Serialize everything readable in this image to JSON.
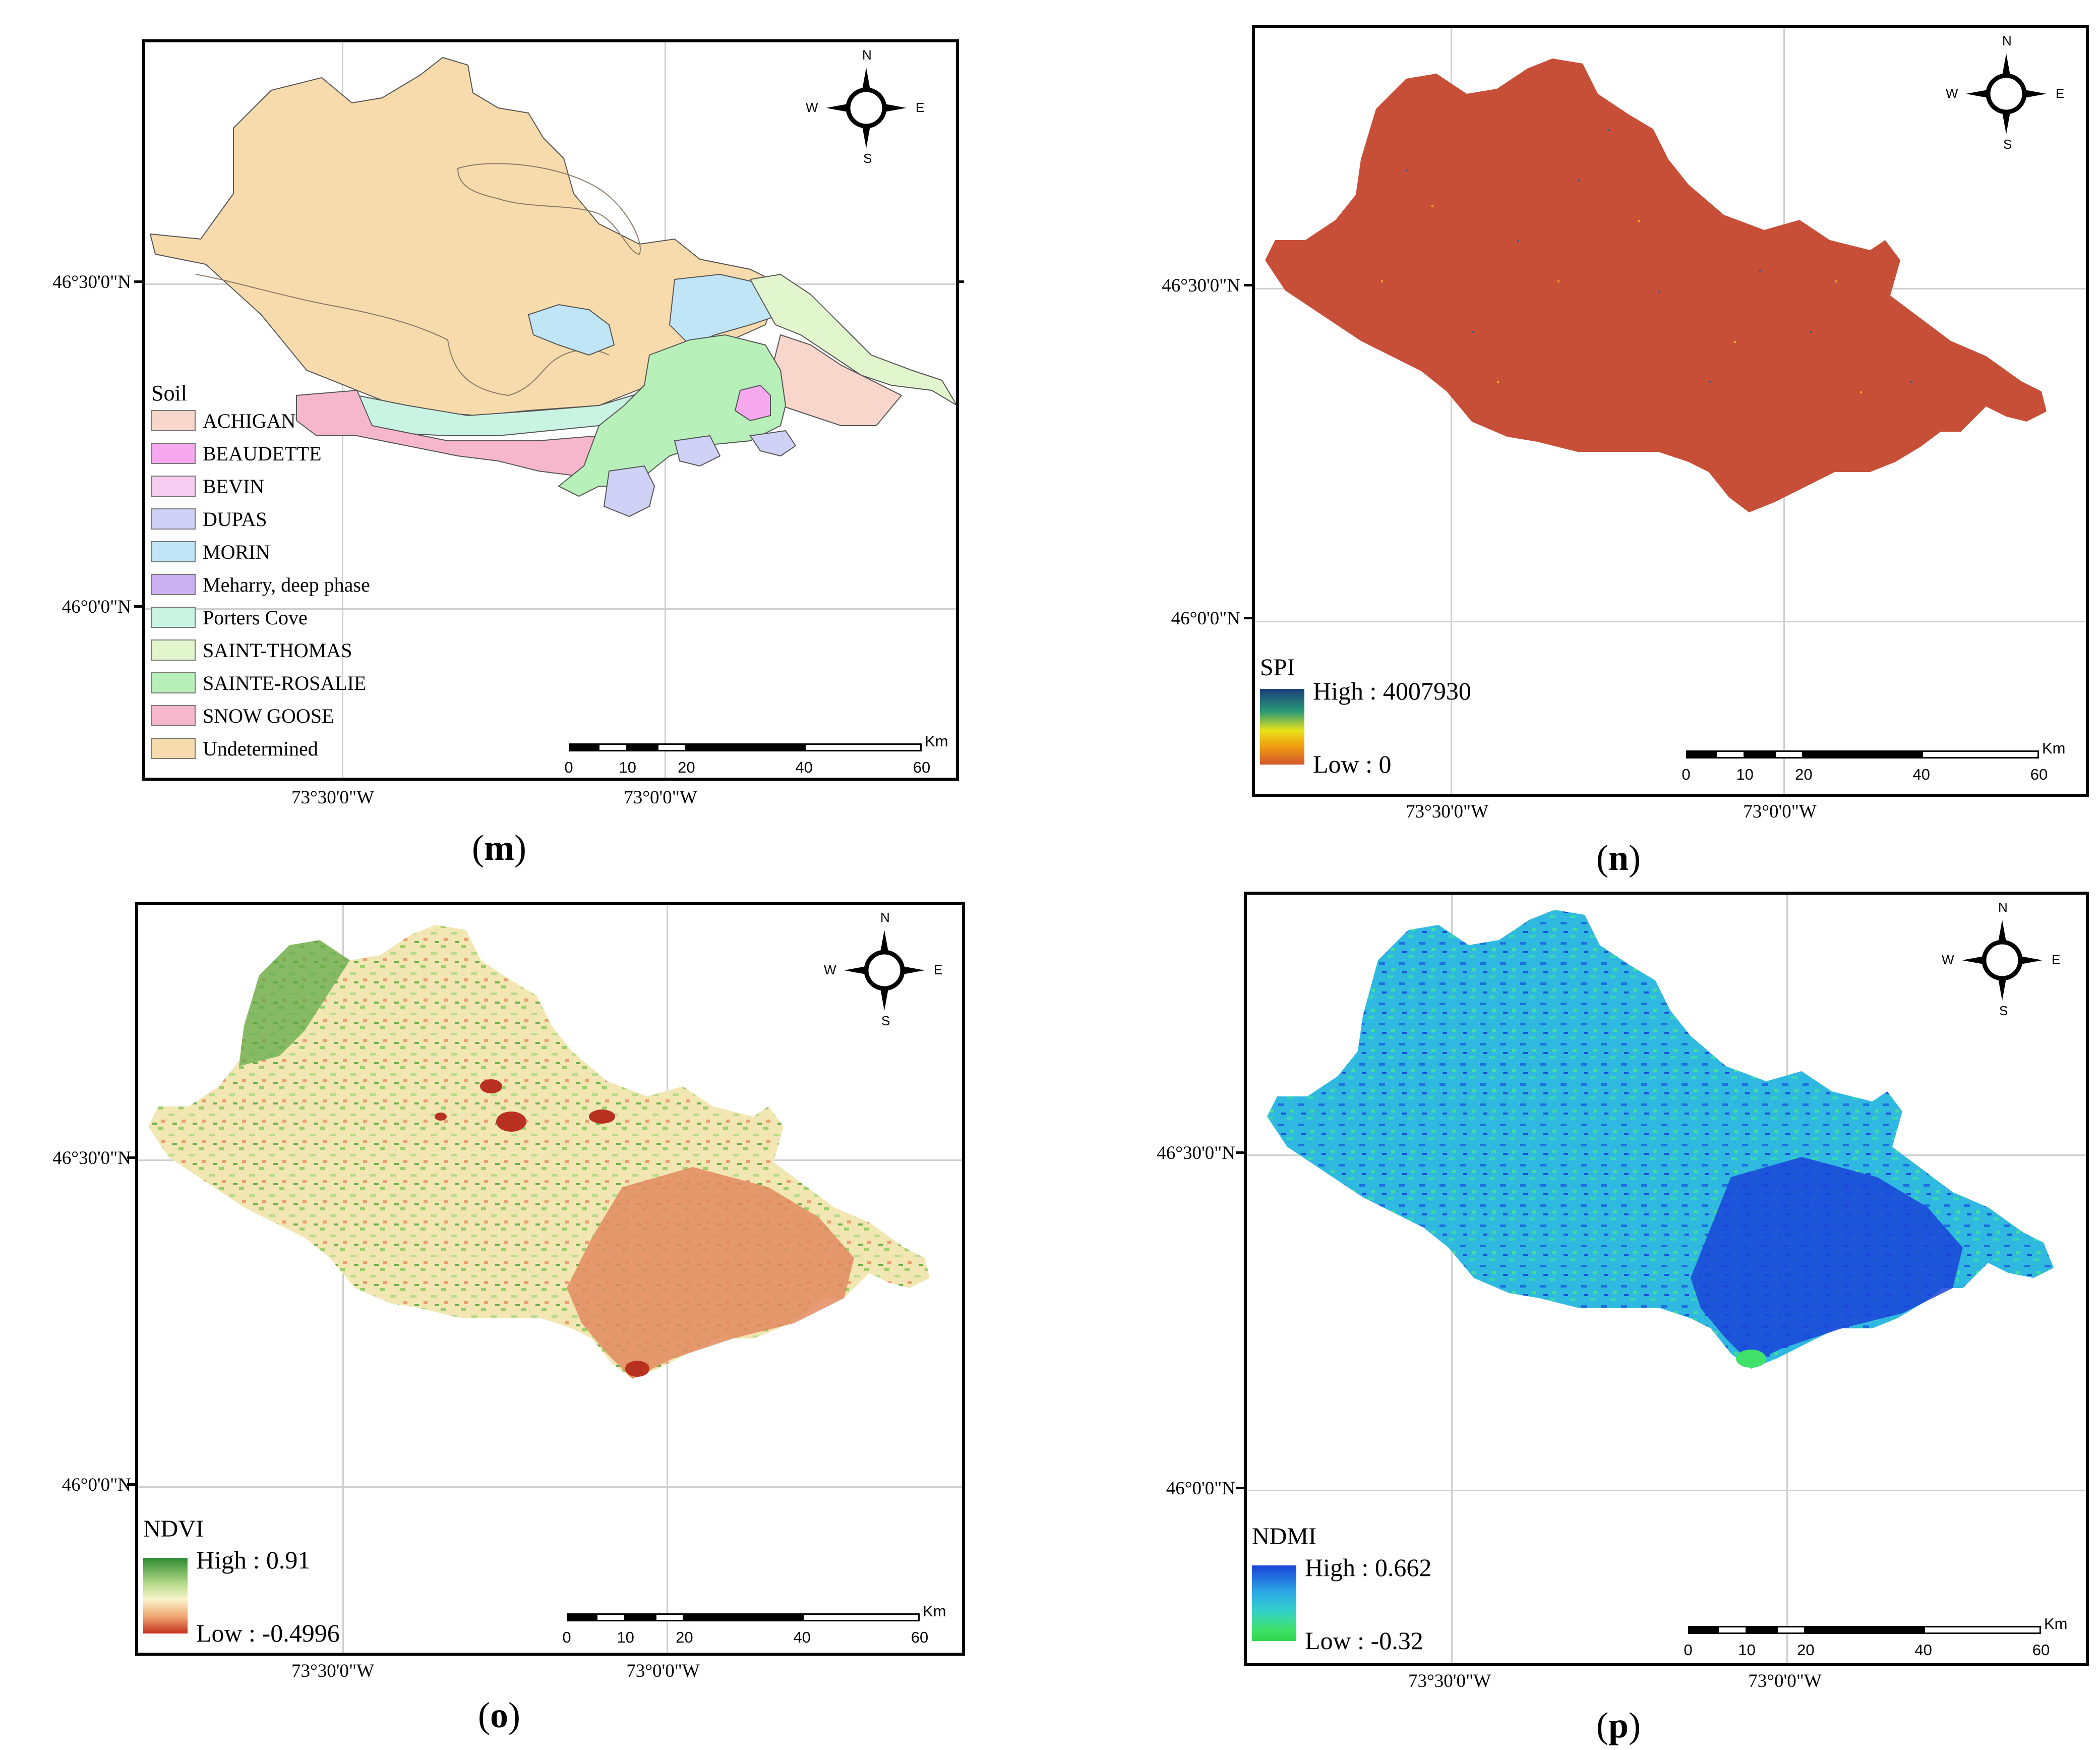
{
  "panels": {
    "m": {
      "caption_letter": "m",
      "lat_labels": [
        "46°30'0\"N",
        "46°0'0\"N"
      ],
      "lon_labels": [
        "73°30'0\"W",
        "73°0'0\"W"
      ],
      "legend_title": "Soil",
      "legend_items": [
        {
          "label": "ACHIGAN",
          "color": "#f8d6cc"
        },
        {
          "label": "BEAUDETTE",
          "color": "#f6a9ee"
        },
        {
          "label": "BEVIN",
          "color": "#f6cdf0"
        },
        {
          "label": "DUPAS",
          "color": "#cfd1f6"
        },
        {
          "label": "MORIN",
          "color": "#bfe5f7"
        },
        {
          "label": "Meharry, deep phase",
          "color": "#cbb1f2"
        },
        {
          "label": "Porters Cove",
          "color": "#c9f3e3"
        },
        {
          "label": "SAINT-THOMAS",
          "color": "#e2f6cd"
        },
        {
          "label": "SAINTE-ROSALIE",
          "color": "#b8f0b9"
        },
        {
          "label": "SNOW GOOSE",
          "color": "#f6b7cc"
        },
        {
          "label": "Undetermined",
          "color": "#f7dbac"
        }
      ]
    },
    "n": {
      "caption_letter": "n",
      "lat_labels": [
        "46°30'0\"N",
        "46°0'0\"N"
      ],
      "lon_labels": [
        "73°30'0\"W",
        "73°0'0\"W"
      ],
      "ramp_title": "SPI",
      "ramp_high": "High : 4007930",
      "ramp_low": "Low : 0",
      "fill_color": "#c84f37"
    },
    "o": {
      "caption_letter": "o",
      "lat_labels": [
        "46°30'0\"N",
        "46°0'0\"N"
      ],
      "lon_labels": [
        "73°30'0\"W",
        "73°0'0\"W"
      ],
      "ramp_title": "NDVI",
      "ramp_high": "High : 0.91",
      "ramp_low": "Low : -0.4996",
      "fill_color": "#e8d9a4"
    },
    "p": {
      "caption_letter": "p",
      "lat_labels": [
        "46°30'0\"N",
        "46°0'0\"N"
      ],
      "lon_labels": [
        "73°30'0\"W",
        "73°0'0\"W"
      ],
      "ramp_title": "NDMI",
      "ramp_high": "High : 0.662",
      "ramp_low": "Low : -0.32",
      "fill_color": "#27c7d8"
    }
  },
  "compass": {
    "n": "N",
    "s": "S",
    "e": "E",
    "w": "W"
  },
  "scalebar": {
    "unit": "Km",
    "labels": [
      "0",
      "10",
      "20",
      "40",
      "60"
    ]
  },
  "colors": {
    "spi_ramp": [
      "#1b3f7c",
      "#2a9a76",
      "#e8e21a",
      "#f0a00f",
      "#d2572f"
    ],
    "ndvi_ramp": [
      "#2f8a31",
      "#b9dc8c",
      "#fbf4cc",
      "#eea46f",
      "#c5301d"
    ],
    "ndmi_ramp": [
      "#1a43d8",
      "#2ca7e6",
      "#33d0cb",
      "#3fe16a",
      "#2fd64a"
    ]
  }
}
